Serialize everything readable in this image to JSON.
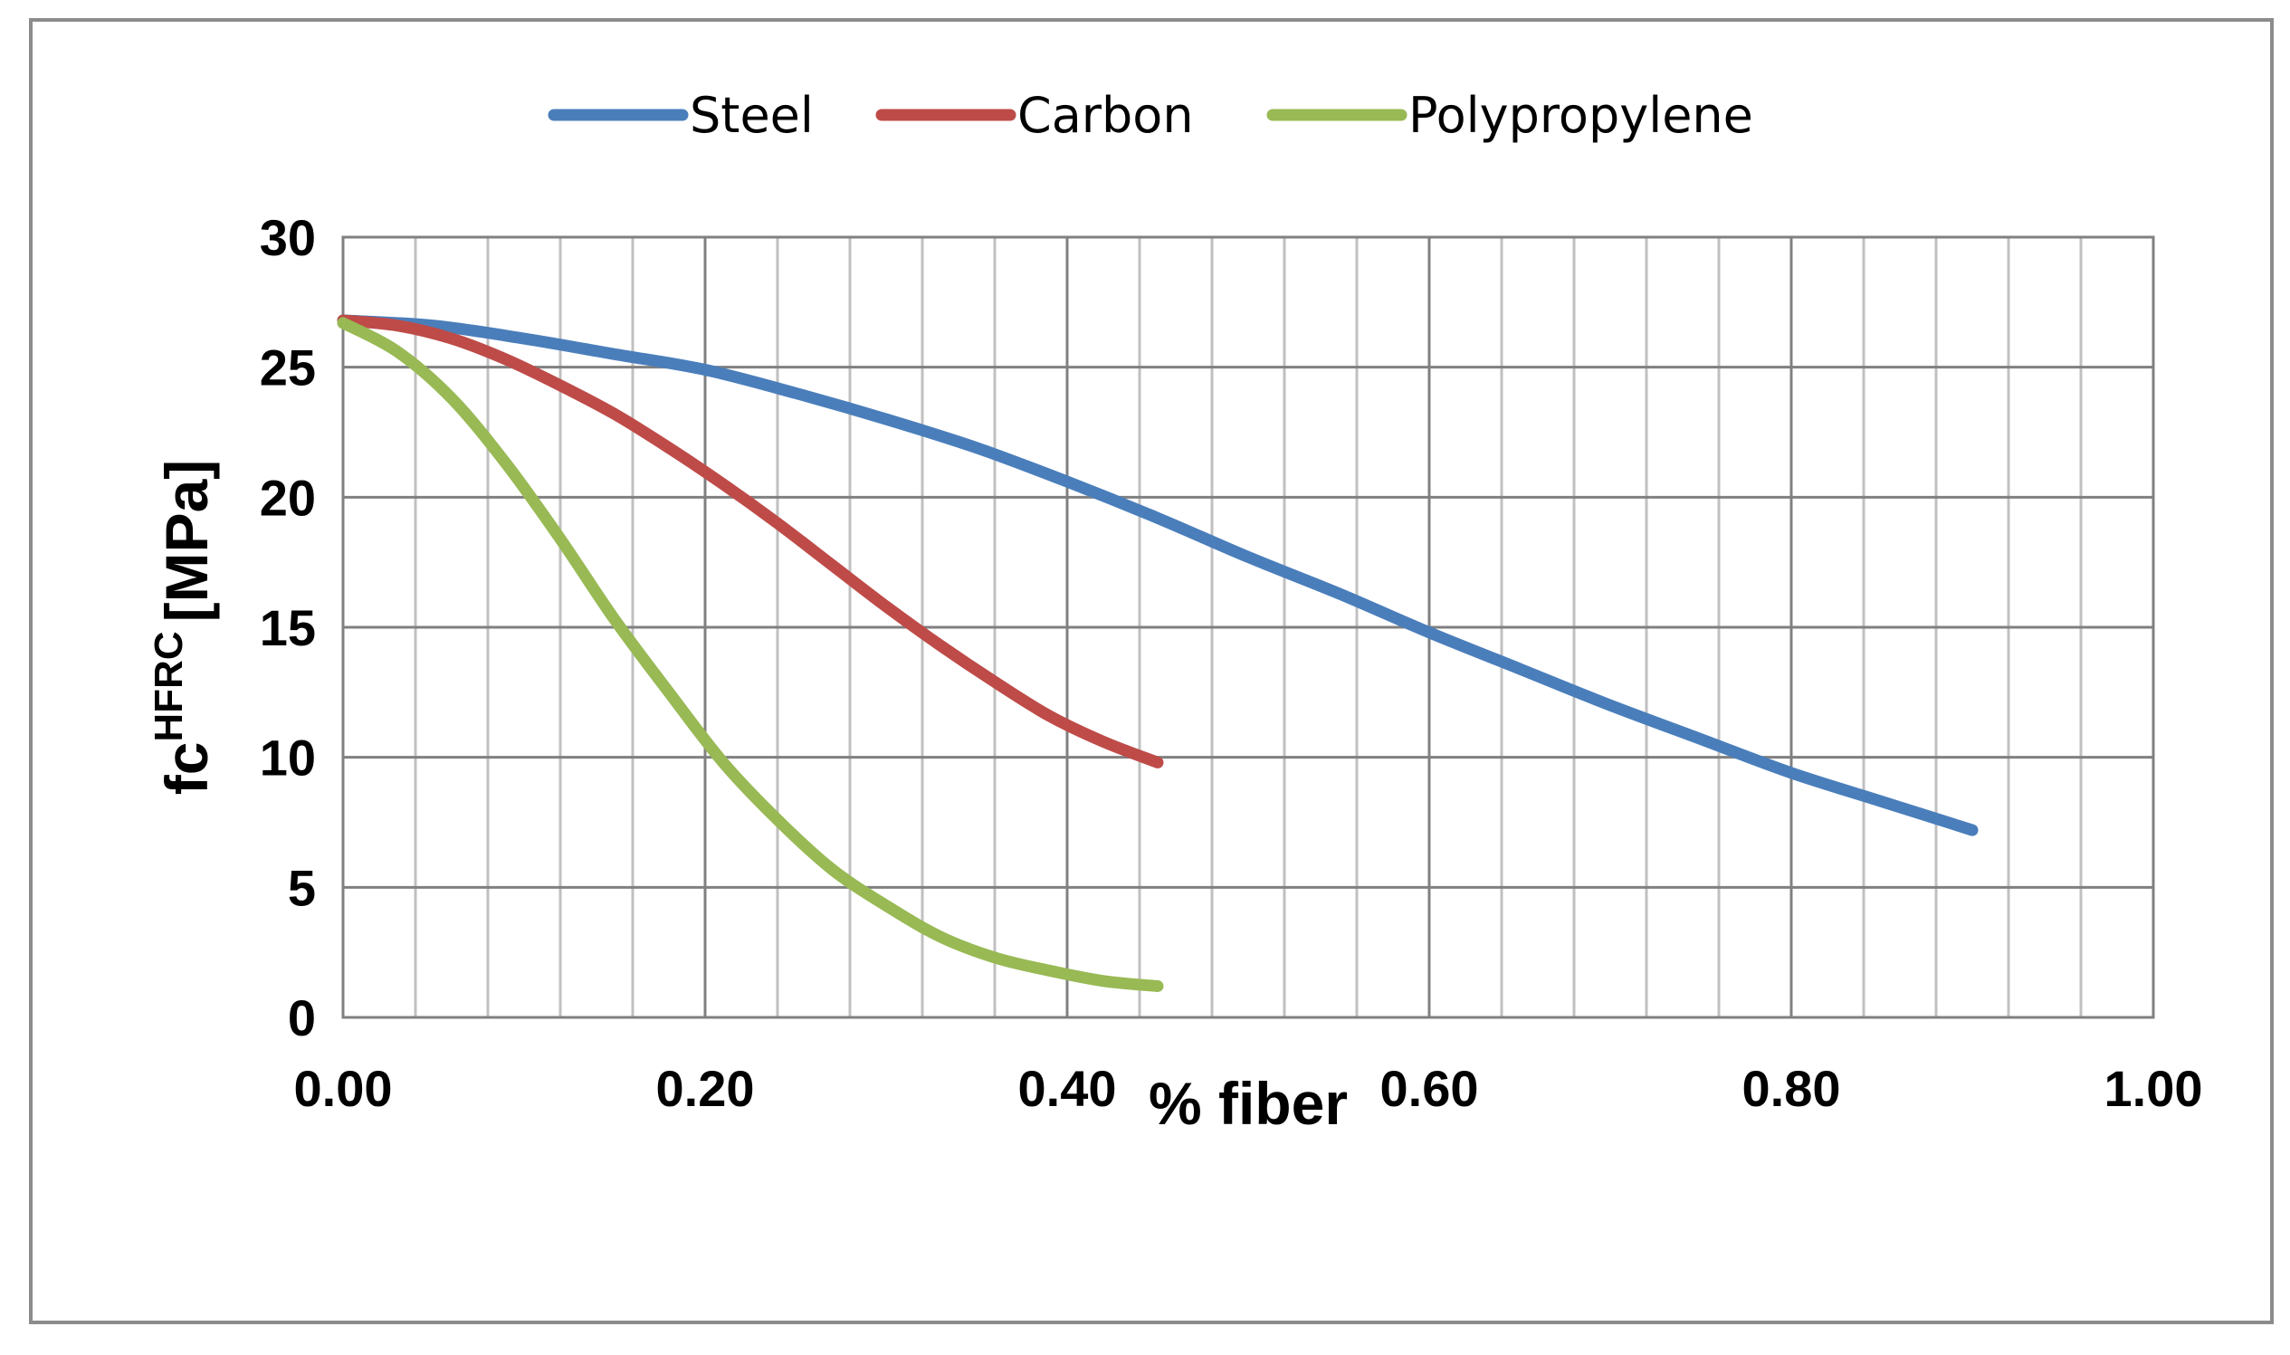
{
  "chart_data": {
    "type": "line",
    "title": "",
    "xlabel": "% fiber",
    "ylabel_main": "fc",
    "ylabel_sup": "HFRC",
    "ylabel_unit": "[MPa]",
    "xlim": [
      0,
      1
    ],
    "ylim": [
      0,
      30
    ],
    "x_major_ticks": [
      0,
      0.2,
      0.4,
      0.6,
      0.8,
      1.0
    ],
    "x_tick_labels": [
      "0.00",
      "0.20",
      "0.40",
      "0.60",
      "0.80",
      "1.00"
    ],
    "x_minor_step": 0.04,
    "y_ticks": [
      0,
      5,
      10,
      15,
      20,
      25,
      30
    ],
    "y_tick_labels": [
      "0",
      "5",
      "10",
      "15",
      "20",
      "25",
      "30"
    ],
    "grid": true,
    "legend_position": "top",
    "series": [
      {
        "name": "Steel",
        "color": "#4a7ebb",
        "x": [
          0,
          0.05,
          0.1,
          0.15,
          0.2,
          0.25,
          0.3,
          0.35,
          0.4,
          0.45,
          0.5,
          0.55,
          0.6,
          0.65,
          0.7,
          0.75,
          0.8,
          0.85,
          0.9
        ],
        "y": [
          26.8,
          26.6,
          26.1,
          25.5,
          24.9,
          24.0,
          23.0,
          21.9,
          20.6,
          19.2,
          17.7,
          16.3,
          14.8,
          13.4,
          12.0,
          10.7,
          9.4,
          8.3,
          7.2
        ]
      },
      {
        "name": "Carbon",
        "color": "#be4b48",
        "x": [
          0,
          0.03,
          0.06,
          0.09,
          0.12,
          0.15,
          0.18,
          0.21,
          0.24,
          0.27,
          0.3,
          0.33,
          0.36,
          0.39,
          0.42,
          0.45
        ],
        "y": [
          26.8,
          26.6,
          26.1,
          25.3,
          24.3,
          23.2,
          21.9,
          20.5,
          19.0,
          17.4,
          15.8,
          14.3,
          12.9,
          11.6,
          10.6,
          9.8
        ]
      },
      {
        "name": "Polypropylene",
        "color": "#98b954",
        "x": [
          0,
          0.03,
          0.06,
          0.09,
          0.12,
          0.15,
          0.18,
          0.21,
          0.24,
          0.27,
          0.3,
          0.33,
          0.36,
          0.39,
          0.42,
          0.45
        ],
        "y": [
          26.7,
          25.6,
          23.8,
          21.3,
          18.4,
          15.3,
          12.5,
          9.8,
          7.6,
          5.7,
          4.3,
          3.1,
          2.3,
          1.8,
          1.4,
          1.2
        ]
      }
    ]
  }
}
